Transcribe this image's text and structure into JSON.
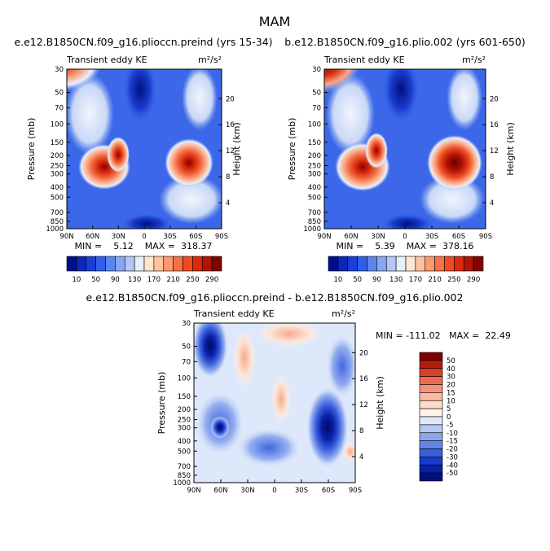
{
  "figure": {
    "title": "MAM"
  },
  "chart_data": [
    {
      "type": "heatmap",
      "title": "e.e12.B1850CN.f09_g16.plioccn.preind (yrs 15-34)",
      "left_label": "Transient eddy KE",
      "units": "m²/s²",
      "ylabel": "Pressure (mb)",
      "y2label": "Height (km)",
      "x_ticks": [
        "90N",
        "60N",
        "30N",
        "0",
        "30S",
        "60S",
        "90S"
      ],
      "y_ticks": [
        "30",
        "50",
        "70",
        "100",
        "150",
        "200",
        "250",
        "300",
        "400",
        "500",
        "700",
        "850",
        "1000"
      ],
      "y2_ticks": [
        "20",
        "16",
        "12",
        "8",
        "4"
      ],
      "stats_text": "MIN =    5.12    MAX =  318.37",
      "min": 5.12,
      "max": 318.37,
      "colorbar": {
        "labels": [
          "10",
          "50",
          "90",
          "130",
          "170",
          "210",
          "250",
          "290"
        ],
        "colors": [
          "#000e8c",
          "#0a27b5",
          "#1a3fd6",
          "#3060e8",
          "#5a86f0",
          "#86a8f4",
          "#b4c8f6",
          "#e6eefc",
          "#fde6d0",
          "#fcc3a0",
          "#fb9a6e",
          "#f77046",
          "#ef4a22",
          "#d92a0e",
          "#b01404",
          "#820400"
        ]
      }
    },
    {
      "type": "heatmap",
      "title": "b.e12.B1850CN.f09_g16.plio.002 (yrs 601-650)",
      "left_label": "Transient eddy KE",
      "units": "m²/s²",
      "ylabel": "Pressure (mb)",
      "y2label": "Height (km)",
      "x_ticks": [
        "90N",
        "60N",
        "30N",
        "0",
        "30S",
        "60S",
        "90S"
      ],
      "y_ticks": [
        "30",
        "50",
        "70",
        "100",
        "150",
        "200",
        "250",
        "300",
        "400",
        "500",
        "700",
        "850",
        "1000"
      ],
      "y2_ticks": [
        "20",
        "16",
        "12",
        "8",
        "4"
      ],
      "stats_text": "MIN =    5.39    MAX =  378.16",
      "min": 5.39,
      "max": 378.16,
      "colorbar": {
        "labels": [
          "10",
          "50",
          "90",
          "130",
          "170",
          "210",
          "250",
          "290"
        ],
        "colors": [
          "#000e8c",
          "#0a27b5",
          "#1a3fd6",
          "#3060e8",
          "#5a86f0",
          "#86a8f4",
          "#b4c8f6",
          "#e6eefc",
          "#fde6d0",
          "#fcc3a0",
          "#fb9a6e",
          "#f77046",
          "#ef4a22",
          "#d92a0e",
          "#b01404",
          "#820400"
        ]
      }
    },
    {
      "type": "heatmap",
      "title": "e.e12.B1850CN.f09_g16.plioccn.preind - b.e12.B1850CN.f09_g16.plio.002",
      "left_label": "Transient eddy KE",
      "units": "m²/s²",
      "ylabel": "Pressure (mb)",
      "y2label": "Height (km)",
      "x_ticks": [
        "90N",
        "60N",
        "30N",
        "0",
        "30S",
        "60S",
        "90S"
      ],
      "y_ticks": [
        "30",
        "50",
        "70",
        "100",
        "150",
        "200",
        "250",
        "300",
        "400",
        "500",
        "700",
        "850",
        "1000"
      ],
      "y2_ticks": [
        "20",
        "16",
        "12",
        "8",
        "4"
      ],
      "stats_text": "MIN = -111.02   MAX =  22.49",
      "min": -111.02,
      "max": 22.49,
      "colorbar": {
        "labels": [
          "50",
          "40",
          "30",
          "20",
          "15",
          "10",
          "5",
          "0",
          "-5",
          "-10",
          "-15",
          "-20",
          "-30",
          "-40",
          "-50"
        ],
        "colors": [
          "#7e0000",
          "#b01c0c",
          "#d6402a",
          "#ec6a50",
          "#f5937a",
          "#f9b9a2",
          "#fcdcc8",
          "#fff3ea",
          "#dde8fa",
          "#b3c8f4",
          "#8aa6ec",
          "#6284e6",
          "#3a5fdc",
          "#1a3bc8",
          "#0a1fa6",
          "#00107a"
        ]
      }
    }
  ]
}
